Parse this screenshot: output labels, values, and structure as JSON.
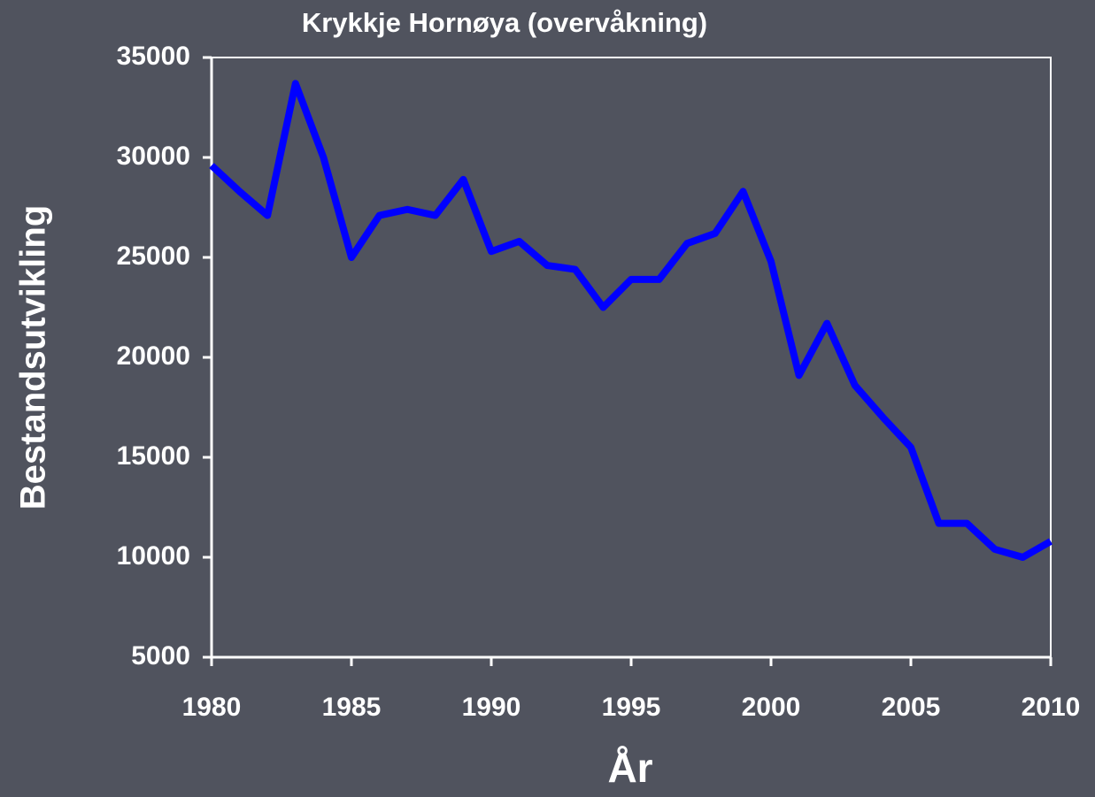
{
  "chart_data": {
    "type": "line",
    "title": "Krykkje Hornøya (overvåkning)",
    "x_label": "År",
    "y_label": "Bestandsutvikling",
    "x": [
      1980,
      1981,
      1982,
      1983,
      1984,
      1985,
      1986,
      1987,
      1988,
      1989,
      1990,
      1991,
      1992,
      1993,
      1994,
      1995,
      1996,
      1997,
      1998,
      1999,
      2000,
      2001,
      2002,
      2003,
      2004,
      2005,
      2006,
      2007,
      2008,
      2009,
      2010
    ],
    "series": [
      {
        "color": "#0000ff",
        "values": [
          29600,
          28300,
          27100,
          33700,
          30000,
          25000,
          27100,
          27400,
          27100,
          28900,
          25300,
          25800,
          24600,
          24400,
          22500,
          23900,
          23900,
          25700,
          26200,
          28300,
          24800,
          19100,
          21700,
          18600,
          17000,
          15500,
          11700,
          11700,
          10400,
          10000,
          10800
        ]
      }
    ],
    "xlim": [
      1980,
      2010
    ],
    "xticks": [
      1980,
      1985,
      1990,
      1995,
      2000,
      2005,
      2010
    ],
    "ylim": [
      5000,
      35000
    ],
    "yticks": [
      5000,
      10000,
      15000,
      20000,
      25000,
      30000,
      35000
    ]
  }
}
